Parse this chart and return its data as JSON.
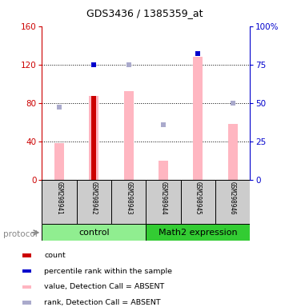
{
  "title": "GDS3436 / 1385359_at",
  "samples": [
    "GSM298941",
    "GSM298942",
    "GSM298943",
    "GSM298944",
    "GSM298945",
    "GSM298946"
  ],
  "pink_values": [
    38,
    87,
    92,
    20,
    128,
    58
  ],
  "rank_values": [
    47,
    75,
    75,
    36,
    82,
    50
  ],
  "red_bar_idx": 1,
  "red_bar_value": 87,
  "blue_marker_indices": [
    1,
    4
  ],
  "ylim_left": [
    0,
    160
  ],
  "ylim_right": [
    0,
    100
  ],
  "yticks_left": [
    0,
    40,
    80,
    120,
    160
  ],
  "yticks_right": [
    0,
    25,
    50,
    75,
    100
  ],
  "ytick_labels_right": [
    "0",
    "25",
    "50",
    "75",
    "100%"
  ],
  "left_axis_color": "#CC0000",
  "right_axis_color": "#0000CC",
  "pink_color": "#FFB6C1",
  "rank_color": "#AAAACC",
  "red_color": "#CC0000",
  "blue_color": "#0000CC",
  "bg_label": "#CCCCCC",
  "bg_group_control": "#90EE90",
  "bg_group_math2": "#33CC33",
  "legend_labels": [
    "count",
    "percentile rank within the sample",
    "value, Detection Call = ABSENT",
    "rank, Detection Call = ABSENT"
  ],
  "legend_colors": [
    "#CC0000",
    "#0000CC",
    "#FFB6C1",
    "#AAAACC"
  ],
  "control_label": "control",
  "math2_label": "Math2 expression",
  "protocol_label": "protocol"
}
